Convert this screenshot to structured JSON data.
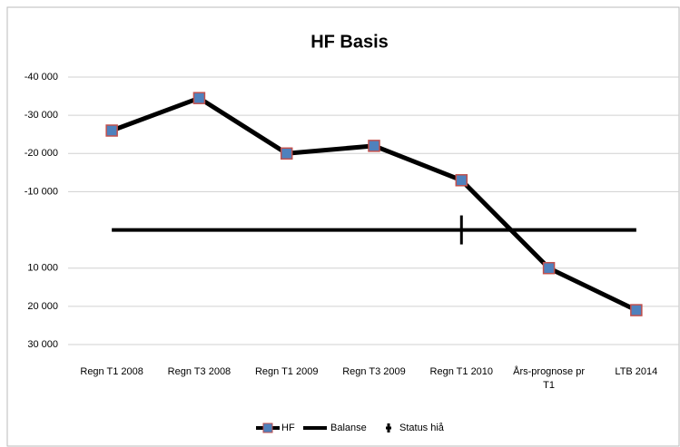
{
  "chart_data": {
    "type": "line",
    "title": "HF Basis",
    "categories": [
      "Regn T1 2008",
      "Regn T3 2008",
      "Regn T1 2009",
      "Regn T3 2009",
      "Regn T1 2010",
      "Års-prognose pr T1",
      "LTB 2014"
    ],
    "series": [
      {
        "name": "HF",
        "color": "#000000",
        "marker_color": "#4f81bd",
        "values": [
          -26000,
          -34500,
          -20000,
          -22000,
          -13000,
          10000,
          21000
        ]
      },
      {
        "name": "Balanse",
        "color": "#000000",
        "values": [
          0,
          0,
          0,
          0,
          0,
          0,
          0
        ]
      },
      {
        "name": "Status hiå",
        "color": "#000000",
        "values": [
          null,
          null,
          null,
          null,
          0,
          null,
          null
        ]
      }
    ],
    "ylim": [
      -40000,
      30000
    ],
    "y_inverted": true,
    "yticks": [
      {
        "value": -40000,
        "label": "-40 000"
      },
      {
        "value": -30000,
        "label": "-30 000"
      },
      {
        "value": -20000,
        "label": "-20 000"
      },
      {
        "value": -10000,
        "label": "-10 000"
      },
      {
        "value": 10000,
        "label": "10 000"
      },
      {
        "value": 20000,
        "label": "20 000"
      },
      {
        "value": 30000,
        "label": "30 000"
      }
    ],
    "grid": true,
    "legend": "bottom"
  }
}
